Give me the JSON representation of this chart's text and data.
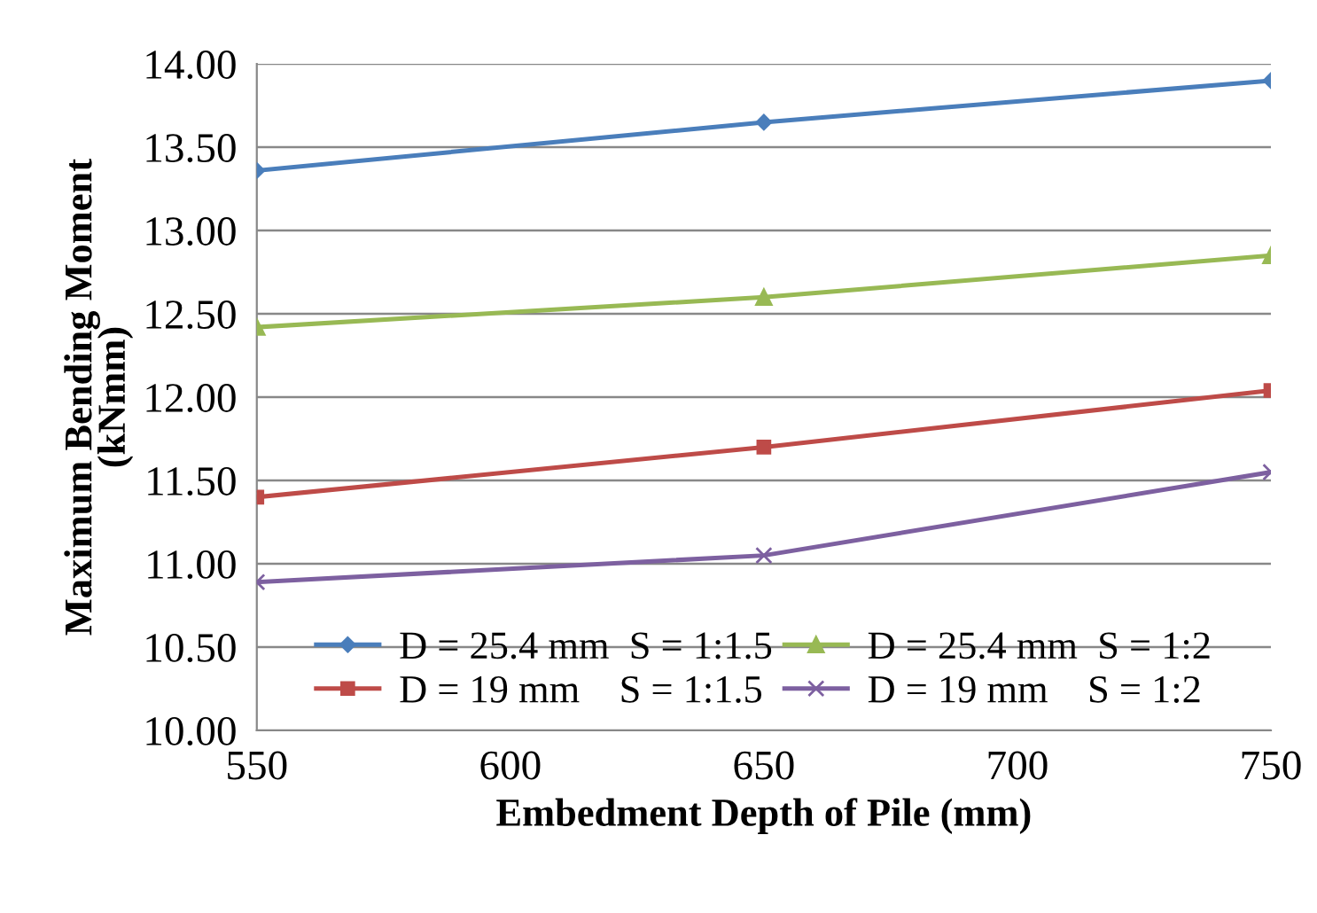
{
  "chart_data": {
    "type": "line",
    "xlabel": "Embedment Depth of Pile (mm)",
    "ylabel": "Maximum Bending Moment\n(kNmm)",
    "x": [
      550,
      650,
      750
    ],
    "series": [
      {
        "name": "D = 25.4 mm  S = 1:1.5",
        "color": "#4a7ebb",
        "marker": "diamond",
        "values": [
          13.36,
          13.65,
          13.9
        ]
      },
      {
        "name": "D = 19 mm    S = 1:1.5",
        "color": "#be4b48",
        "marker": "square",
        "values": [
          11.4,
          11.7,
          12.04
        ]
      },
      {
        "name": "D = 25.4 mm  S = 1:2",
        "color": "#98b954",
        "marker": "triangle",
        "values": [
          12.42,
          12.6,
          12.85
        ]
      },
      {
        "name": "D = 19 mm    S = 1:2",
        "color": "#7d60a0",
        "marker": "cross",
        "values": [
          10.89,
          11.05,
          11.55
        ]
      }
    ],
    "xlim": [
      550,
      750
    ],
    "xticks": [
      550,
      600,
      650,
      700,
      750
    ],
    "ylim": [
      10,
      14
    ],
    "yticks": [
      {
        "value": 10,
        "label": "10.00"
      },
      {
        "value": 10.5,
        "label": "10.50"
      },
      {
        "value": 11,
        "label": "11.00"
      },
      {
        "value": 11.5,
        "label": "11.50"
      },
      {
        "value": 12,
        "label": "12.00"
      },
      {
        "value": 12.5,
        "label": "12.50"
      },
      {
        "value": 13,
        "label": "13.00"
      },
      {
        "value": 13.5,
        "label": "13.50"
      },
      {
        "value": 14,
        "label": "14.00"
      }
    ],
    "grid": "y",
    "legend": "bottom",
    "line_style": "solid"
  }
}
